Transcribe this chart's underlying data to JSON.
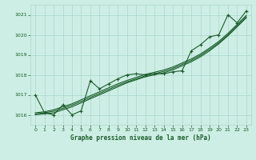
{
  "title": "Graphe pression niveau de la mer (hPa)",
  "background_color": "#cdeee4",
  "grid_color": "#a8d8cc",
  "line_color": "#1a5c2a",
  "text_color": "#1a5c2a",
  "xlim": [
    -0.5,
    23.5
  ],
  "ylim": [
    1015.5,
    1021.5
  ],
  "yticks": [
    1016,
    1017,
    1018,
    1019,
    1020,
    1021
  ],
  "xticks": [
    0,
    1,
    2,
    3,
    4,
    5,
    6,
    7,
    8,
    9,
    10,
    11,
    12,
    13,
    14,
    15,
    16,
    17,
    18,
    19,
    20,
    21,
    22,
    23
  ],
  "hours": [
    0,
    1,
    2,
    3,
    4,
    5,
    6,
    7,
    8,
    9,
    10,
    11,
    12,
    13,
    14,
    15,
    16,
    17,
    18,
    19,
    20,
    21,
    22,
    23
  ],
  "pressure_main": [
    1017.0,
    1016.1,
    1016.0,
    1016.5,
    1016.0,
    1016.2,
    1017.7,
    1017.3,
    1017.55,
    1017.8,
    1018.0,
    1018.05,
    1018.0,
    1018.05,
    1018.05,
    1018.15,
    1018.2,
    1019.2,
    1019.5,
    1019.9,
    1020.0,
    1021.0,
    1020.6,
    1021.2
  ],
  "smooth1": [
    1016.0,
    1016.05,
    1016.1,
    1016.25,
    1016.4,
    1016.6,
    1016.8,
    1017.0,
    1017.2,
    1017.4,
    1017.6,
    1017.75,
    1017.9,
    1018.0,
    1018.1,
    1018.25,
    1018.45,
    1018.65,
    1018.9,
    1019.2,
    1019.55,
    1019.95,
    1020.4,
    1020.85
  ],
  "smooth2": [
    1016.05,
    1016.1,
    1016.18,
    1016.32,
    1016.48,
    1016.67,
    1016.87,
    1017.07,
    1017.27,
    1017.47,
    1017.65,
    1017.8,
    1017.95,
    1018.06,
    1018.17,
    1018.32,
    1018.52,
    1018.72,
    1018.97,
    1019.27,
    1019.6,
    1020.0,
    1020.45,
    1020.9
  ],
  "smooth3": [
    1016.1,
    1016.15,
    1016.25,
    1016.4,
    1016.55,
    1016.75,
    1016.95,
    1017.15,
    1017.35,
    1017.55,
    1017.72,
    1017.87,
    1018.02,
    1018.13,
    1018.24,
    1018.39,
    1018.59,
    1018.79,
    1019.04,
    1019.34,
    1019.67,
    1020.07,
    1020.52,
    1020.97
  ]
}
